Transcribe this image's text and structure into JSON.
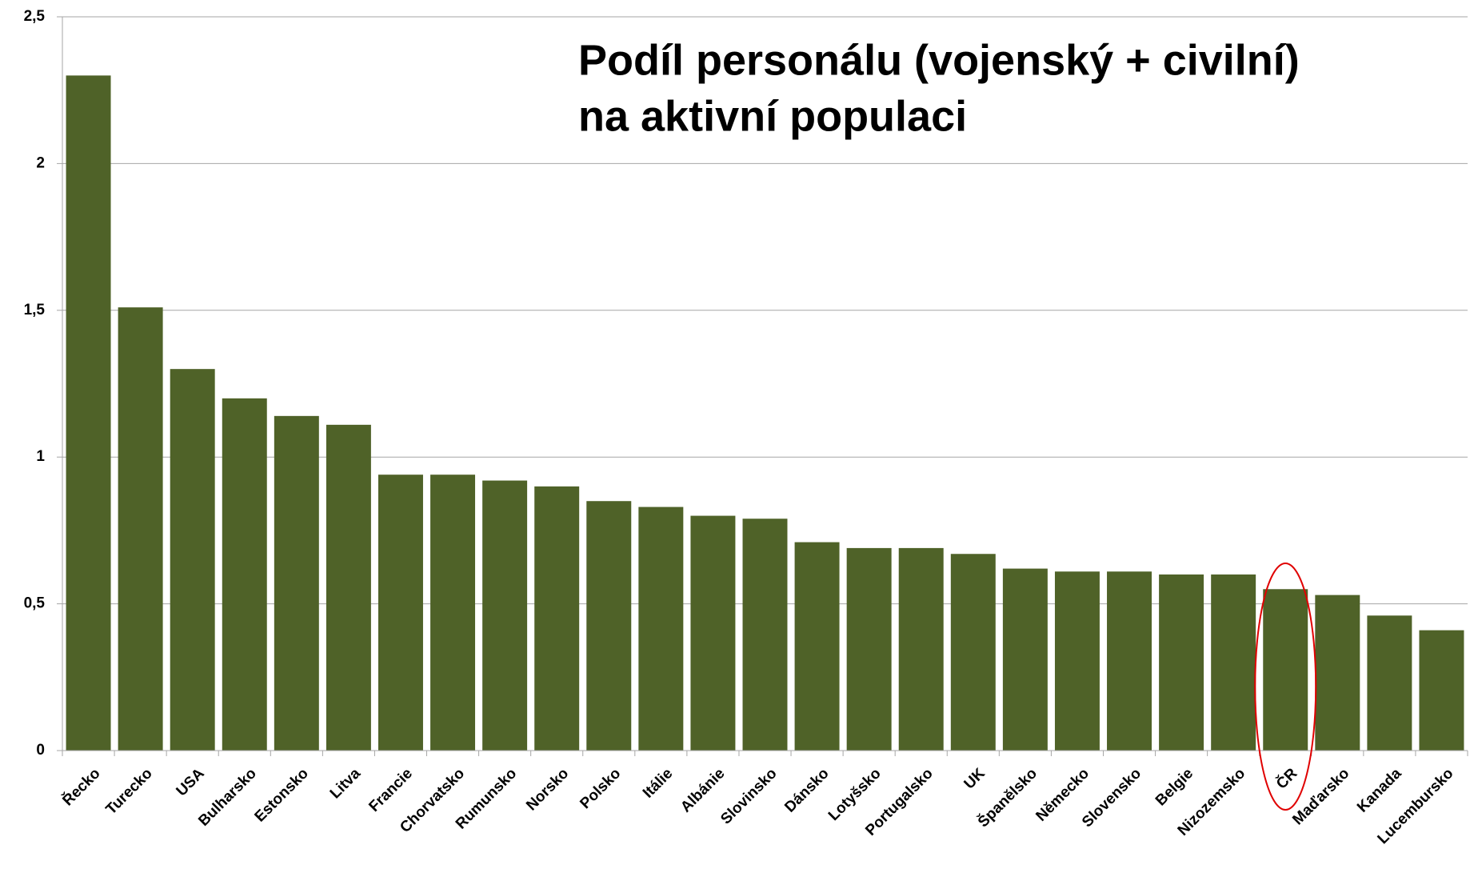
{
  "chart_data": {
    "type": "bar",
    "title": [
      "Podíl personálu (vojenský + civilní)",
      "na aktivní populaci"
    ],
    "categories": [
      "Řecko",
      "Turecko",
      "USA",
      "Bulharsko",
      "Estonsko",
      "Litva",
      "Francie",
      "Chorvatsko",
      "Rumunsko",
      "Norsko",
      "Polsko",
      "Itálie",
      "Albánie",
      "Slovinsko",
      "Dánsko",
      "Lotyšsko",
      "Portugalsko",
      "UK",
      "Španělsko",
      "Německo",
      "Slovensko",
      "Belgie",
      "Nizozemsko",
      "ČR",
      "Maďarsko",
      "Kanada",
      "Lucembursko"
    ],
    "values": [
      2.3,
      1.51,
      1.3,
      1.2,
      1.14,
      1.11,
      0.94,
      0.94,
      0.92,
      0.9,
      0.85,
      0.83,
      0.8,
      0.79,
      0.71,
      0.69,
      0.69,
      0.67,
      0.62,
      0.61,
      0.61,
      0.6,
      0.6,
      0.55,
      0.53,
      0.46,
      0.41
    ],
    "color": "#4f6228",
    "ylim": [
      0,
      2.5
    ],
    "yticks": [
      0,
      {
        "value": 0.5,
        "label": "0,5"
      },
      1,
      {
        "value": 1.5,
        "label": "1,5"
      },
      2,
      {
        "value": 2.5,
        "label": "2,5"
      }
    ],
    "grid": true
  }
}
